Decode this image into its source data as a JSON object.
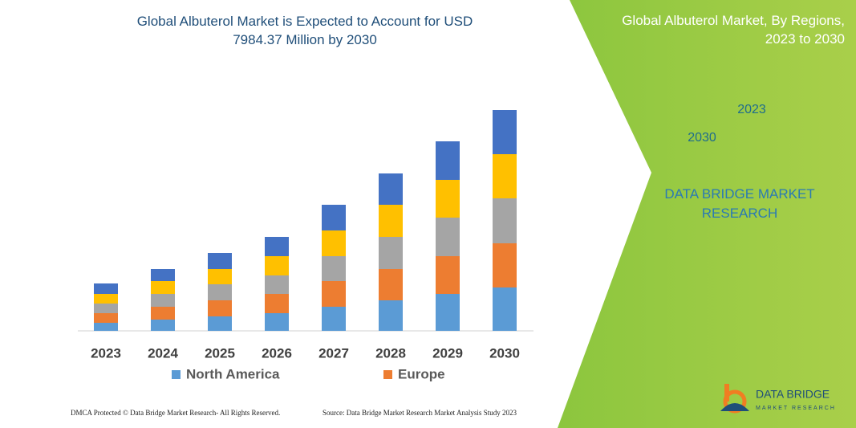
{
  "chart_data": {
    "type": "stacked_bar",
    "title": "Global Albuterol Market is Expected to Account for USD 7984.37 Million by 2030",
    "categories": [
      "2023",
      "2024",
      "2025",
      "2026",
      "2027",
      "2028",
      "2029",
      "2030"
    ],
    "series": [
      {
        "name": "North America",
        "color": "#5b9bd5",
        "values": [
          10,
          14,
          18,
          22,
          30,
          38,
          46,
          54
        ]
      },
      {
        "name": "Europe",
        "color": "#ed7d31",
        "values": [
          12,
          16,
          20,
          24,
          32,
          39,
          47,
          55
        ]
      },
      {
        "color": "#a5a5a5",
        "values": [
          12,
          16,
          20,
          23,
          31,
          40,
          48,
          56
        ]
      },
      {
        "color": "#ffc000",
        "values": [
          12,
          16,
          19,
          24,
          32,
          40,
          47,
          55
        ]
      },
      {
        "color": "#4472c4",
        "values": [
          13,
          15,
          20,
          24,
          32,
          39,
          48,
          55
        ]
      }
    ],
    "ylim": [
      0,
      290
    ]
  },
  "panel": {
    "title": "Global Albuterol Market, By Regions, 2023 to 2030",
    "hex_front": "2030",
    "hex_back": "2023",
    "brand": "DATA BRIDGE MARKET RESEARCH"
  },
  "footer": {
    "left": "DMCA Protected © Data Bridge Market Research- All Rights Reserved.",
    "right": "Source: Data Bridge Market Research Market Analysis Study 2023"
  },
  "logo": {
    "name": "DATA BRIDGE",
    "tagline": "MARKET RESEARCH"
  }
}
